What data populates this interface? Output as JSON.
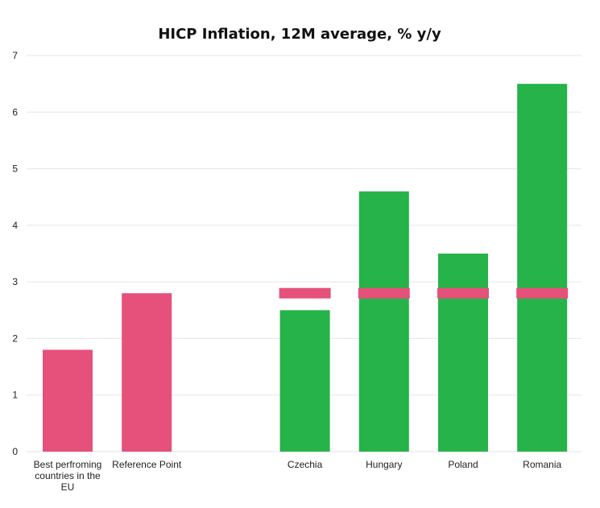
{
  "chart_data": {
    "type": "bar",
    "title": "HICP Inflation, 12M average, % y/y",
    "xlabel": "",
    "ylabel": "",
    "ylim": [
      0,
      7
    ],
    "yticks": [
      0,
      1,
      2,
      3,
      4,
      5,
      6,
      7
    ],
    "grid": true,
    "legend": "none",
    "categories": [
      "Best perfroming countries in the EU",
      "Reference Point",
      "",
      "Czechia",
      "Hungary",
      "Poland",
      "Romania"
    ],
    "category_label_lines": [
      [
        "Best perfroming",
        "countries in the",
        "EU"
      ],
      [
        "Reference Point"
      ],
      [],
      [
        "Czechia"
      ],
      [
        "Hungary"
      ],
      [
        "Poland"
      ],
      [
        "Romania"
      ]
    ],
    "series": [
      {
        "values": [
          1.8,
          2.8,
          null,
          null,
          null,
          null,
          null
        ],
        "color": "#e5517b"
      },
      {
        "values": [
          null,
          null,
          null,
          2.5,
          4.6,
          3.5,
          6.5
        ],
        "color": "#26b34a"
      }
    ],
    "reference_markers": {
      "value": 2.8,
      "categories": [
        "Czechia",
        "Hungary",
        "Poland",
        "Romania"
      ],
      "color": "#e5517b"
    }
  }
}
